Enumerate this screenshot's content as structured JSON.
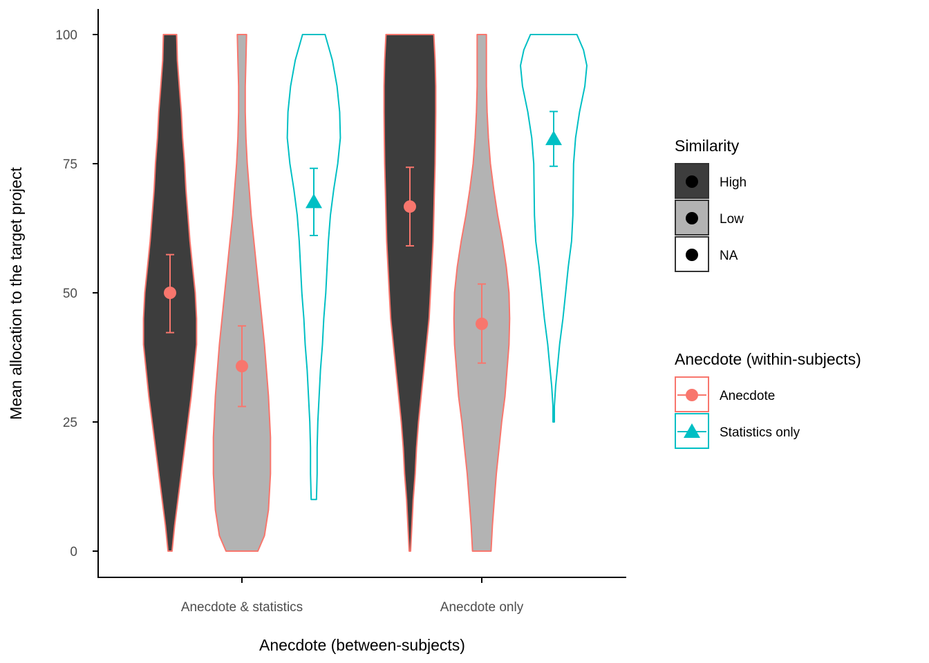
{
  "chart_data": {
    "type": "violin",
    "xlabel": "Anecdote (between-subjects)",
    "ylabel": "Mean allocation to the target project",
    "ylim": [
      -5,
      105
    ],
    "yticks": [
      0,
      25,
      50,
      75,
      100
    ],
    "categories": [
      "Anecdote & statistics",
      "Anecdote only"
    ],
    "colors": {
      "anecdote": "#F8766D",
      "statistics_only": "#00BFC4",
      "high_fill": "#3d3d3d",
      "low_fill": "#b3b3b3",
      "na_fill": "#ffffff"
    },
    "groups": [
      {
        "category": "Anecdote & statistics",
        "similarity": "High",
        "anecdote": "Anecdote",
        "mean": 50,
        "ci": [
          42.3,
          57.4
        ],
        "range": [
          0,
          100
        ],
        "density": [
          [
            0,
            0.03
          ],
          [
            5,
            0.07
          ],
          [
            10,
            0.12
          ],
          [
            15,
            0.17
          ],
          [
            20,
            0.22
          ],
          [
            25,
            0.27
          ],
          [
            30,
            0.32
          ],
          [
            35,
            0.36
          ],
          [
            40,
            0.4
          ],
          [
            45,
            0.4
          ],
          [
            50,
            0.38
          ],
          [
            55,
            0.34
          ],
          [
            60,
            0.3
          ],
          [
            65,
            0.27
          ],
          [
            70,
            0.24
          ],
          [
            75,
            0.22
          ],
          [
            80,
            0.19
          ],
          [
            85,
            0.17
          ],
          [
            90,
            0.14
          ],
          [
            95,
            0.11
          ],
          [
            100,
            0.1
          ]
        ]
      },
      {
        "category": "Anecdote & statistics",
        "similarity": "Low",
        "anecdote": "Anecdote",
        "mean": 35.8,
        "ci": [
          28,
          43.6
        ],
        "range": [
          0,
          100
        ],
        "density": [
          [
            0,
            0.24
          ],
          [
            3,
            0.34
          ],
          [
            8,
            0.4
          ],
          [
            15,
            0.43
          ],
          [
            22,
            0.43
          ],
          [
            30,
            0.4
          ],
          [
            35,
            0.37
          ],
          [
            40,
            0.34
          ],
          [
            45,
            0.3
          ],
          [
            50,
            0.26
          ],
          [
            55,
            0.22
          ],
          [
            60,
            0.18
          ],
          [
            65,
            0.14
          ],
          [
            70,
            0.11
          ],
          [
            75,
            0.08
          ],
          [
            80,
            0.06
          ],
          [
            85,
            0.05
          ],
          [
            90,
            0.05
          ],
          [
            95,
            0.06
          ],
          [
            100,
            0.07
          ]
        ]
      },
      {
        "category": "Anecdote & statistics",
        "similarity": "NA",
        "anecdote": "Statistics only",
        "mean": 67.6,
        "ci": [
          61.1,
          74.1
        ],
        "range": [
          10,
          100
        ],
        "density": [
          [
            10,
            0.04
          ],
          [
            15,
            0.05
          ],
          [
            20,
            0.05
          ],
          [
            25,
            0.06
          ],
          [
            30,
            0.08
          ],
          [
            35,
            0.1
          ],
          [
            40,
            0.13
          ],
          [
            45,
            0.15
          ],
          [
            50,
            0.18
          ],
          [
            55,
            0.2
          ],
          [
            60,
            0.22
          ],
          [
            65,
            0.25
          ],
          [
            70,
            0.3
          ],
          [
            75,
            0.36
          ],
          [
            80,
            0.4
          ],
          [
            85,
            0.39
          ],
          [
            90,
            0.35
          ],
          [
            95,
            0.28
          ],
          [
            100,
            0.17
          ]
        ]
      },
      {
        "category": "Anecdote only",
        "similarity": "High",
        "anecdote": "Anecdote",
        "mean": 66.7,
        "ci": [
          59.1,
          74.3
        ],
        "range": [
          0,
          100
        ],
        "density": [
          [
            0,
            0.01
          ],
          [
            5,
            0.03
          ],
          [
            10,
            0.05
          ],
          [
            15,
            0.08
          ],
          [
            20,
            0.1
          ],
          [
            25,
            0.13
          ],
          [
            30,
            0.17
          ],
          [
            35,
            0.21
          ],
          [
            40,
            0.25
          ],
          [
            45,
            0.29
          ],
          [
            50,
            0.31
          ],
          [
            55,
            0.33
          ],
          [
            60,
            0.35
          ],
          [
            65,
            0.36
          ],
          [
            70,
            0.37
          ],
          [
            75,
            0.38
          ],
          [
            80,
            0.385
          ],
          [
            85,
            0.39
          ],
          [
            90,
            0.39
          ],
          [
            95,
            0.38
          ],
          [
            100,
            0.36
          ]
        ]
      },
      {
        "category": "Anecdote only",
        "similarity": "Low",
        "anecdote": "Anecdote",
        "mean": 44,
        "ci": [
          36.4,
          51.7
        ],
        "range": [
          0,
          100
        ],
        "density": [
          [
            0,
            0.14
          ],
          [
            5,
            0.16
          ],
          [
            10,
            0.19
          ],
          [
            15,
            0.22
          ],
          [
            20,
            0.26
          ],
          [
            25,
            0.3
          ],
          [
            30,
            0.35
          ],
          [
            35,
            0.38
          ],
          [
            40,
            0.41
          ],
          [
            45,
            0.42
          ],
          [
            50,
            0.41
          ],
          [
            55,
            0.37
          ],
          [
            60,
            0.31
          ],
          [
            65,
            0.24
          ],
          [
            70,
            0.18
          ],
          [
            75,
            0.13
          ],
          [
            80,
            0.1
          ],
          [
            85,
            0.08
          ],
          [
            90,
            0.07
          ],
          [
            95,
            0.07
          ],
          [
            100,
            0.07
          ]
        ]
      },
      {
        "category": "Anecdote only",
        "similarity": "NA",
        "anecdote": "Statistics only",
        "mean": 79.8,
        "ci": [
          74.5,
          85.1
        ],
        "range": [
          25,
          100
        ],
        "density": [
          [
            25,
            0.01
          ],
          [
            28,
            0.01
          ],
          [
            32,
            0.03
          ],
          [
            36,
            0.06
          ],
          [
            40,
            0.09
          ],
          [
            45,
            0.14
          ],
          [
            50,
            0.18
          ],
          [
            55,
            0.22
          ],
          [
            60,
            0.27
          ],
          [
            65,
            0.29
          ],
          [
            70,
            0.295
          ],
          [
            75,
            0.3
          ],
          [
            80,
            0.33
          ],
          [
            85,
            0.39
          ],
          [
            90,
            0.47
          ],
          [
            94,
            0.5
          ],
          [
            97,
            0.45
          ],
          [
            100,
            0.35
          ]
        ]
      }
    ],
    "legends": [
      {
        "title": "Similarity",
        "items": [
          {
            "label": "High",
            "fill": "#3d3d3d"
          },
          {
            "label": "Low",
            "fill": "#b3b3b3"
          },
          {
            "label": "NA",
            "fill": "#ffffff"
          }
        ]
      },
      {
        "title": "Anecdote (within-subjects)",
        "items": [
          {
            "label": "Anecdote",
            "color": "#F8766D",
            "shape": "circle"
          },
          {
            "label": "Statistics only",
            "color": "#00BFC4",
            "shape": "triangle"
          }
        ]
      }
    ]
  }
}
